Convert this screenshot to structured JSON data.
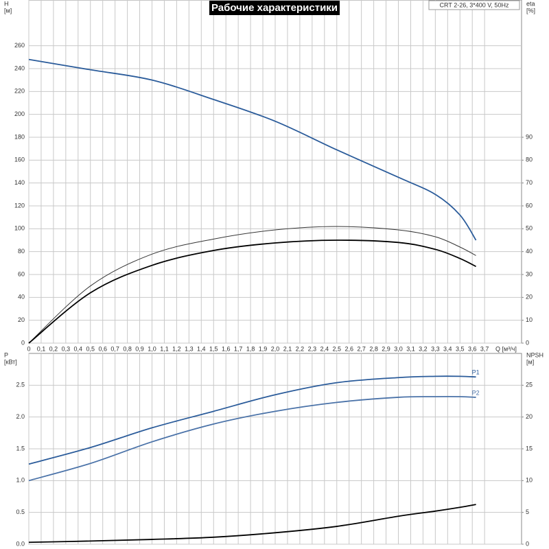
{
  "chart_data": [
    {
      "type": "line",
      "title": "Рабочие характеристики",
      "subtitle": "CRT 2-26, 3*400 V, 50Hz",
      "y_label": "H",
      "y_unit": "[м]",
      "y2_label": "eta",
      "y2_unit": "[%]",
      "x_label": "Q [м³/ч]",
      "x": [
        0,
        0.5,
        1.0,
        1.5,
        2.0,
        2.5,
        3.0,
        3.3,
        3.5,
        3.63
      ],
      "xlim": [
        0,
        4.0
      ],
      "xticks": [
        0,
        {
          "value": 0.1,
          "label": "0,1"
        },
        {
          "value": 0.2,
          "label": "0,2"
        },
        {
          "value": 0.3,
          "label": "0,3"
        },
        {
          "value": 0.4,
          "label": "0,4"
        },
        {
          "value": 0.5,
          "label": "0,5"
        },
        {
          "value": 0.6,
          "label": "0,6"
        },
        {
          "value": 0.7,
          "label": "0,7"
        },
        {
          "value": 0.8,
          "label": "0,8"
        },
        {
          "value": 0.9,
          "label": "0,9"
        },
        {
          "value": 1.0,
          "label": "1,0"
        },
        {
          "value": 1.1,
          "label": "1,1"
        },
        {
          "value": 1.2,
          "label": "1,2"
        },
        {
          "value": 1.3,
          "label": "1,3"
        },
        {
          "value": 1.4,
          "label": "1,4"
        },
        {
          "value": 1.5,
          "label": "1,5"
        },
        {
          "value": 1.6,
          "label": "1,6"
        },
        {
          "value": 1.7,
          "label": "1,7"
        },
        {
          "value": 1.8,
          "label": "1,8"
        },
        {
          "value": 1.9,
          "label": "1,9"
        },
        {
          "value": 2.0,
          "label": "2,0"
        },
        {
          "value": 2.1,
          "label": "2,1"
        },
        {
          "value": 2.2,
          "label": "2,2"
        },
        {
          "value": 2.3,
          "label": "2,3"
        },
        {
          "value": 2.4,
          "label": "2,4"
        },
        {
          "value": 2.5,
          "label": "2,5"
        },
        {
          "value": 2.6,
          "label": "2,6"
        },
        {
          "value": 2.7,
          "label": "2,7"
        },
        {
          "value": 2.8,
          "label": "2,8"
        },
        {
          "value": 2.9,
          "label": "2,9"
        },
        {
          "value": 3.0,
          "label": "3,0"
        },
        {
          "value": 3.1,
          "label": "3,1"
        },
        {
          "value": 3.2,
          "label": "3,2"
        },
        {
          "value": 3.3,
          "label": "3,3"
        },
        {
          "value": 3.4,
          "label": "3,4"
        },
        {
          "value": 3.5,
          "label": "3,5"
        },
        {
          "value": 3.6,
          "label": "3,6"
        },
        {
          "value": 3.7,
          "label": "3,7"
        }
      ],
      "ylim": [
        0,
        300
      ],
      "yticks": [
        0,
        20,
        40,
        60,
        80,
        100,
        120,
        140,
        160,
        180,
        200,
        220,
        240,
        260
      ],
      "y2lim": [
        0,
        150
      ],
      "y2ticks": [
        0,
        10,
        20,
        30,
        40,
        50,
        60,
        70,
        80,
        90
      ],
      "grid": true,
      "series": [
        {
          "color": "#2a5b9a",
          "values": [
            248,
            239,
            230,
            213,
            194,
            169,
            145,
            130,
            112,
            90
          ]
        },
        {
          "color": "#333333",
          "axis": "y2",
          "values": [
            0,
            25,
            38.9,
            45.5,
            49.5,
            51,
            49.5,
            46.5,
            42,
            38.3
          ]
        },
        {
          "color": "#000000",
          "axis": "y2",
          "values": [
            0,
            22,
            34,
            40.5,
            43.8,
            45,
            44,
            41,
            37,
            33.5
          ]
        }
      ]
    },
    {
      "type": "line",
      "y_label": "P",
      "y_unit": "[кВт]",
      "y2_label": "NPSH",
      "y2_unit": "[м]",
      "x": [
        0,
        0.5,
        1.0,
        1.5,
        2.0,
        2.5,
        3.0,
        3.3,
        3.5,
        3.63
      ],
      "xlim": [
        0,
        4.0
      ],
      "ylim": [
        0,
        3.0
      ],
      "yticks": [
        {
          "value": 0,
          "label": "0.0"
        },
        0.5,
        {
          "value": 1,
          "label": "1.0"
        },
        1.5,
        {
          "value": 2,
          "label": "2.0"
        },
        2.5
      ],
      "y2lim": [
        0,
        30
      ],
      "y2ticks": [
        0,
        5,
        10,
        15,
        20,
        25
      ],
      "grid": true,
      "series": [
        {
          "name": "P1",
          "color": "#2a5b9a",
          "values": [
            1.26,
            1.52,
            1.83,
            2.09,
            2.35,
            2.54,
            2.62,
            2.64,
            2.64,
            2.63
          ]
        },
        {
          "name": "P2",
          "color": "#4a72a8",
          "values": [
            1.0,
            1.27,
            1.61,
            1.89,
            2.09,
            2.23,
            2.31,
            2.32,
            2.32,
            2.31
          ]
        },
        {
          "color": "#000000",
          "axis": "y2",
          "values": [
            0.3,
            0.5,
            0.75,
            1.1,
            1.8,
            2.8,
            4.4,
            5.2,
            5.8,
            6.25
          ]
        }
      ]
    }
  ]
}
